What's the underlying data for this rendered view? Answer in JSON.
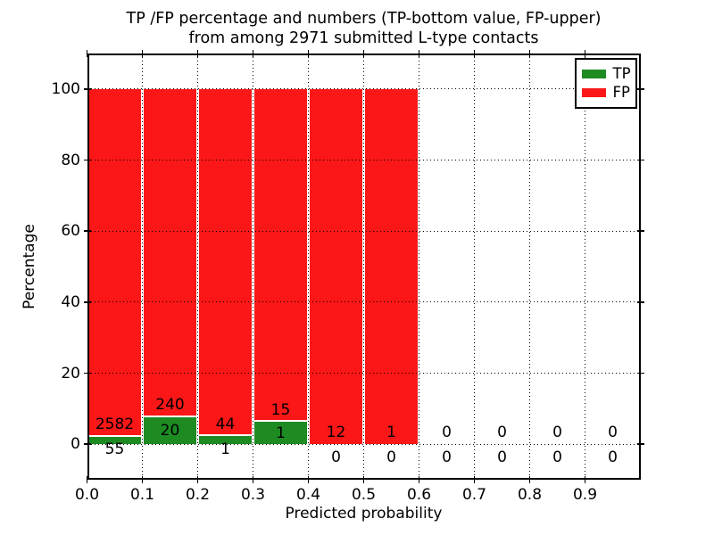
{
  "title": {
    "line1": "TP /FP percentage and numbers (TP-bottom value, FP-upper)",
    "line2": "from among 2971 submitted L-type contacts"
  },
  "chart_data": {
    "type": "bar",
    "stacked": true,
    "title": "TP /FP percentage and numbers (TP-bottom value, FP-upper) from among 2971 submitted L-type contacts",
    "xlabel": "Predicted probability",
    "ylabel": "Percentage",
    "xlim": [
      0.0,
      1.0
    ],
    "ylim": [
      -10,
      110
    ],
    "x_tick_labels": [
      "0.0",
      "0.1",
      "0.2",
      "0.3",
      "0.4",
      "0.5",
      "0.6",
      "0.7",
      "0.8",
      "0.9"
    ],
    "y_tick_labels": [
      "0",
      "20",
      "40",
      "60",
      "80",
      "100"
    ],
    "y_tick_values": [
      0,
      20,
      40,
      60,
      80,
      100
    ],
    "grid": "dotted both axes",
    "legend_position": "upper right",
    "total_contacts": 2971,
    "series_note": "bars show TP%% (bottom, green) and FP%% (top, red) stacked to 100%% per 0.1-wide probability bin; printed numbers are raw counts",
    "bins": [
      {
        "range": [
          0.0,
          0.1
        ],
        "tp": 55,
        "fp": 2582
      },
      {
        "range": [
          0.1,
          0.2
        ],
        "tp": 20,
        "fp": 240
      },
      {
        "range": [
          0.2,
          0.3
        ],
        "tp": 1,
        "fp": 44
      },
      {
        "range": [
          0.3,
          0.4
        ],
        "tp": 1,
        "fp": 15
      },
      {
        "range": [
          0.4,
          0.5
        ],
        "tp": 0,
        "fp": 12
      },
      {
        "range": [
          0.5,
          0.6
        ],
        "tp": 0,
        "fp": 1
      },
      {
        "range": [
          0.6,
          0.7
        ],
        "tp": 0,
        "fp": 0
      },
      {
        "range": [
          0.7,
          0.8
        ],
        "tp": 0,
        "fp": 0
      },
      {
        "range": [
          0.8,
          0.9
        ],
        "tp": 0,
        "fp": 0
      },
      {
        "range": [
          0.9,
          1.0
        ],
        "tp": 0,
        "fp": 0
      }
    ],
    "legend_entries": [
      {
        "label": "TP",
        "color": "#1e8b22"
      },
      {
        "label": "FP",
        "color": "#fb1717"
      }
    ]
  },
  "colors": {
    "tp_green": "#1e8b22",
    "fp_red": "#fb1717",
    "grid": "#000000",
    "background": "#ffffff"
  }
}
